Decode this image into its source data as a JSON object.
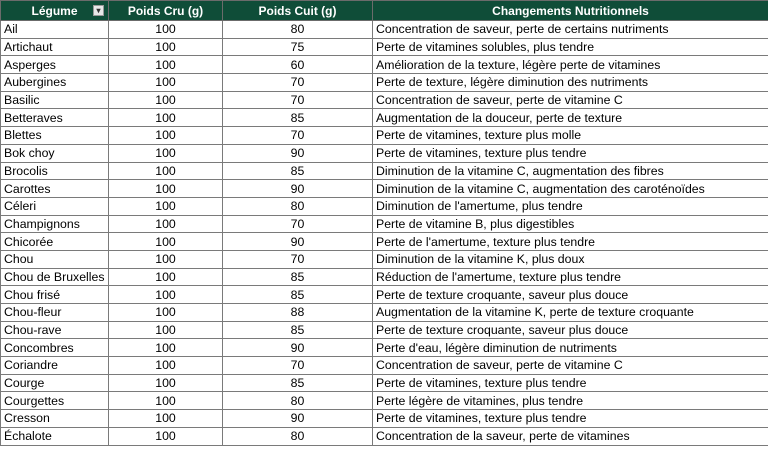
{
  "colors": {
    "header_bg": "#0f4d38",
    "header_text": "#ffffff"
  },
  "headers": [
    "Légume",
    "Poids Cru (g)",
    "Poids Cuit (g)",
    "Changements Nutritionnels"
  ],
  "filter_icon": "sort-ascending-filter-icon",
  "rows": [
    [
      "Ail",
      "100",
      "80",
      "Concentration de saveur, perte de certains nutriments"
    ],
    [
      "Artichaut",
      "100",
      "75",
      "Perte de vitamines solubles, plus tendre"
    ],
    [
      "Asperges",
      "100",
      "60",
      "Amélioration de la texture, légère perte de vitamines"
    ],
    [
      "Aubergines",
      "100",
      "70",
      "Perte de texture, légère diminution des nutriments"
    ],
    [
      "Basilic",
      "100",
      "70",
      "Concentration de saveur, perte de vitamine C"
    ],
    [
      "Betteraves",
      "100",
      "85",
      "Augmentation de la douceur, perte de texture"
    ],
    [
      "Blettes",
      "100",
      "70",
      "Perte de vitamines, texture plus molle"
    ],
    [
      "Bok choy",
      "100",
      "90",
      "Perte de vitamines, texture plus tendre"
    ],
    [
      "Brocolis",
      "100",
      "85",
      "Diminution de la vitamine C, augmentation des fibres"
    ],
    [
      "Carottes",
      "100",
      "90",
      "Diminution de la vitamine C, augmentation des caroténoïdes"
    ],
    [
      "Céleri",
      "100",
      "80",
      "Diminution de l'amertume, plus tendre"
    ],
    [
      "Champignons",
      "100",
      "70",
      "Perte de vitamine B, plus digestibles"
    ],
    [
      "Chicorée",
      "100",
      "90",
      "Perte de l'amertume, texture plus tendre"
    ],
    [
      "Chou",
      "100",
      "70",
      "Diminution de la vitamine K, plus doux"
    ],
    [
      "Chou de Bruxelles",
      "100",
      "85",
      "Réduction de l'amertume, texture plus tendre"
    ],
    [
      "Chou frisé",
      "100",
      "85",
      "Perte de texture croquante, saveur plus douce"
    ],
    [
      "Chou-fleur",
      "100",
      "88",
      "Augmentation de la vitamine K, perte de texture croquante"
    ],
    [
      "Chou-rave",
      "100",
      "85",
      "Perte de texture croquante, saveur plus douce"
    ],
    [
      "Concombres",
      "100",
      "90",
      "Perte d'eau, légère diminution de nutriments"
    ],
    [
      "Coriandre",
      "100",
      "70",
      "Concentration de saveur, perte de vitamine C"
    ],
    [
      "Courge",
      "100",
      "85",
      "Perte de vitamines, texture plus tendre"
    ],
    [
      "Courgettes",
      "100",
      "80",
      "Perte légère de vitamines, plus tendre"
    ],
    [
      "Cresson",
      "100",
      "90",
      "Perte de vitamines, texture plus tendre"
    ],
    [
      "Échalote",
      "100",
      "80",
      "Concentration de la saveur, perte de vitamines"
    ]
  ]
}
